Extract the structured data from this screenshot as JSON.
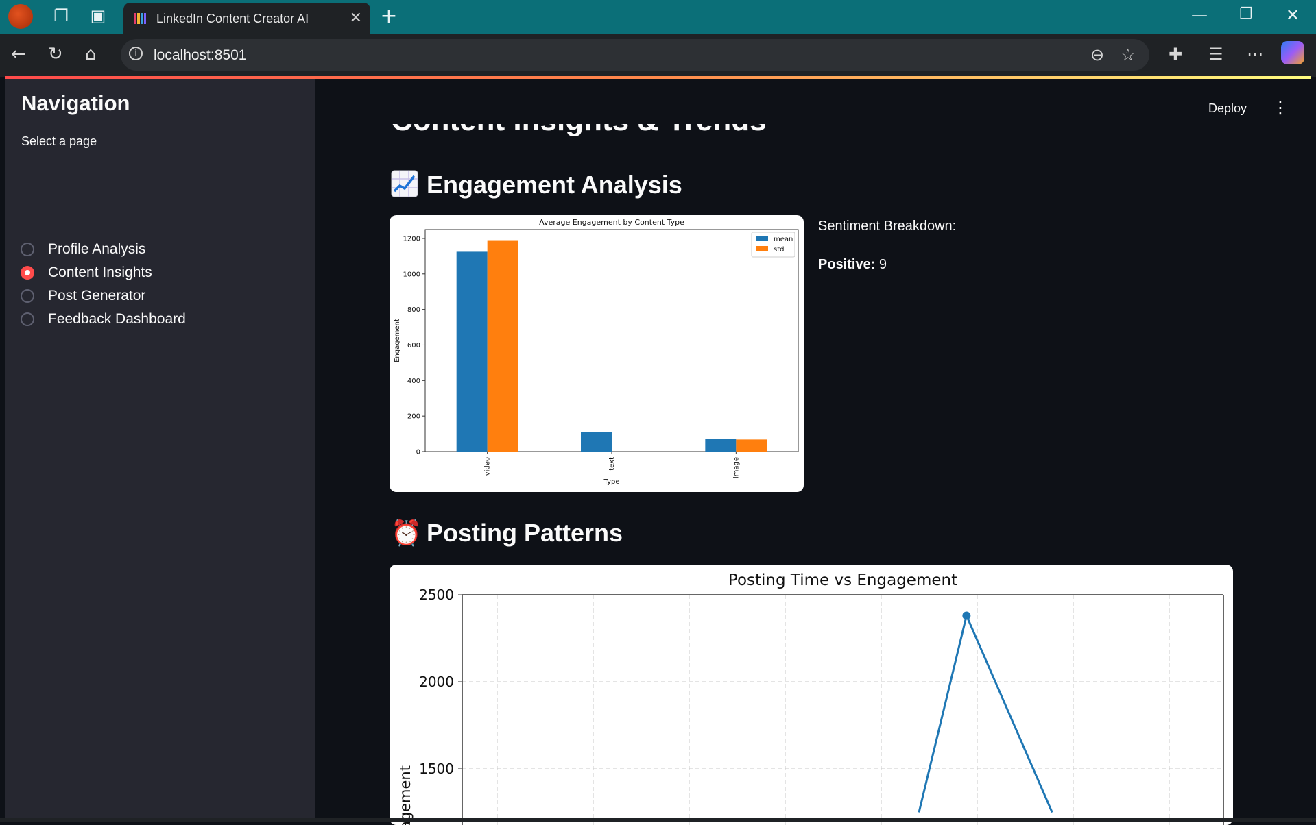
{
  "browser": {
    "tab_title": "LinkedIn Content Creator AI",
    "url": "localhost:8501",
    "icons": [
      "profile-avatar",
      "workspaces-icon",
      "tab-actions-icon",
      "favicon-icon",
      "close-tab-icon",
      "new-tab-icon",
      "minimize-icon",
      "restore-icon",
      "close-window-icon",
      "back-icon",
      "reload-icon",
      "home-icon",
      "info-icon",
      "zoom-out-icon",
      "favorite-star-icon",
      "extensions-icon",
      "favorites-icon",
      "more-icon",
      "copilot-icon"
    ]
  },
  "sidebar": {
    "title": "Navigation",
    "select_label": "Select a page",
    "options": [
      {
        "label": "Profile Analysis",
        "selected": false
      },
      {
        "label": "Content Insights",
        "selected": true
      },
      {
        "label": "Post Generator",
        "selected": false
      },
      {
        "label": "Feedback Dashboard",
        "selected": false
      }
    ],
    "accent": "#ff4b4b"
  },
  "header": {
    "deploy_label": "Deploy",
    "menu_icon": "more-vert-icon"
  },
  "main": {
    "page_title": "Content Insights & Trends",
    "engagement": {
      "title": "Engagement Analysis",
      "icon": "chart-increasing-icon",
      "sentiment_title": "Sentiment Breakdown:",
      "sentiment_positive_label": "Positive:",
      "sentiment_positive_value": "9"
    },
    "posting": {
      "title": "Posting Patterns",
      "icon": "alarm-clock-icon"
    }
  },
  "chart_data": [
    {
      "type": "bar",
      "title": "Average Engagement by Content Type",
      "xlabel": "Type",
      "ylabel": "Engagement",
      "categories": [
        "video",
        "text",
        "image"
      ],
      "series": [
        {
          "name": "mean",
          "values": [
            1125,
            110,
            72
          ],
          "color": "#1f77b4"
        },
        {
          "name": "std",
          "values": [
            1190,
            null,
            68
          ],
          "color": "#ff7f0e"
        }
      ],
      "ylim": [
        0,
        1250
      ],
      "yticks": [
        "0",
        "200",
        "400",
        "600",
        "800",
        "1000",
        "1200"
      ],
      "legend": "top-right",
      "grid": false
    },
    {
      "type": "line",
      "title": "Posting Time vs Engagement",
      "ylabel": "Engagement",
      "ylim": [
        1250,
        2500
      ],
      "yticks": [
        "1500",
        "2000",
        "2500"
      ],
      "x": [
        4.8,
        5.3,
        6.2
      ],
      "y": [
        1250,
        2380,
        1250
      ],
      "xlim": [
        0,
        8
      ],
      "color": "#1f77b4",
      "grid": true
    }
  ]
}
